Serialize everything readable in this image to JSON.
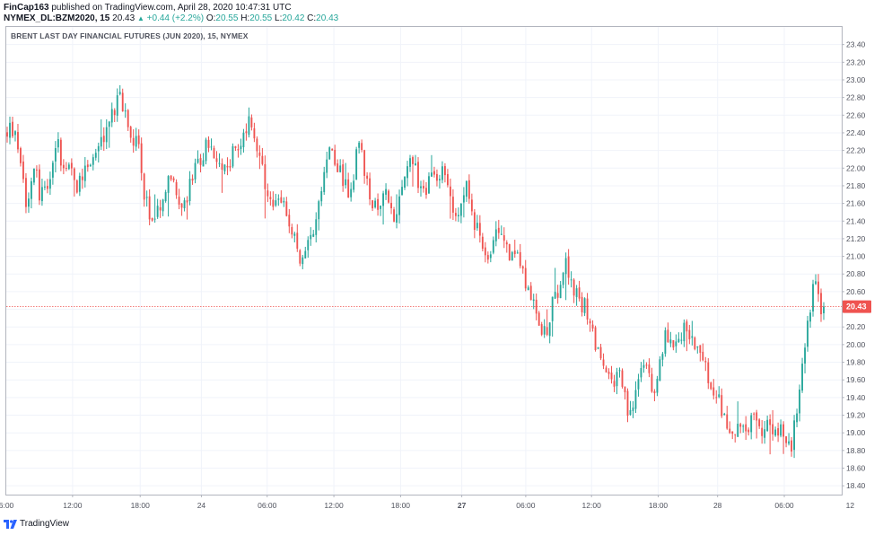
{
  "header": {
    "user": "FinCap163",
    "published_text": "published on TradingView.com, April 28, 2020 10:47:31 UTC"
  },
  "symbol_row": {
    "symbol": "NYMEX_DL:BZM2020, 15",
    "last": "20.43",
    "arrow_icon": "triangle-up-icon",
    "change": "+0.44 (+2.2%)",
    "o_label": "O:",
    "o_value": "20.55",
    "h_label": "H:",
    "h_value": "20.55",
    "l_label": "L:",
    "l_value": "20.42",
    "c_label": "C:",
    "c_value": "20.43"
  },
  "footer": {
    "brand": "TradingView",
    "logo_icon": "tradingview-logo-icon"
  },
  "colors": {
    "up": "#26a69a",
    "down": "#ef5350",
    "price_line": "#ef5350",
    "axis_text": "#50535e"
  },
  "chart_data": {
    "type": "candlestick",
    "title": "BRENT LAST DAY FINANCIAL FUTURES (JUN 2020), 15, NYMEX",
    "ylim": [
      18.3,
      23.6
    ],
    "y_ticks": [
      "18.40",
      "18.60",
      "18.80",
      "19.00",
      "19.20",
      "19.40",
      "19.60",
      "19.80",
      "20.00",
      "20.20",
      "20.40",
      "20.60",
      "20.80",
      "21.00",
      "21.20",
      "21.40",
      "21.60",
      "21.80",
      "22.00",
      "22.20",
      "22.40",
      "22.60",
      "22.80",
      "23.00",
      "23.20",
      "23.40"
    ],
    "x_ticks": [
      {
        "label": "6:00",
        "bold": false,
        "t": 0
      },
      {
        "label": "12:00",
        "bold": false,
        "t": 0.0796
      },
      {
        "label": "18:00",
        "bold": false,
        "t": 0.1608
      },
      {
        "label": "24",
        "bold": false,
        "t": 0.2343
      },
      {
        "label": "06:00",
        "bold": false,
        "t": 0.3133
      },
      {
        "label": "12:00",
        "bold": false,
        "t": 0.3934
      },
      {
        "label": "18:00",
        "bold": false,
        "t": 0.4735
      },
      {
        "label": "27",
        "bold": true,
        "t": 0.547
      },
      {
        "label": "06:00",
        "bold": false,
        "t": 0.6238
      },
      {
        "label": "12:00",
        "bold": false,
        "t": 0.7028
      },
      {
        "label": "18:00",
        "bold": false,
        "t": 0.7829
      },
      {
        "label": "28",
        "bold": false,
        "t": 0.8542
      },
      {
        "label": "06:00",
        "bold": false,
        "t": 0.9343
      },
      {
        "label": "12",
        "bold": false,
        "t": 1.0133
      }
    ],
    "last_price": "20.43",
    "last_price_value": 20.43,
    "path": [
      22.4,
      22.45,
      22.3,
      22.1,
      21.6,
      21.85,
      22.0,
      21.7,
      21.9,
      21.75,
      22.3,
      22.25,
      22.0,
      22.1,
      21.9,
      21.8,
      21.95,
      22.05,
      22.1,
      22.2,
      22.25,
      22.4,
      22.55,
      22.7,
      22.8,
      22.6,
      22.4,
      22.35,
      22.3,
      21.8,
      21.55,
      21.4,
      21.5,
      21.7,
      21.8,
      21.9,
      21.75,
      21.65,
      21.5,
      21.85,
      21.95,
      22.05,
      22.2,
      22.3,
      22.1,
      21.95,
      22.0,
      22.05,
      22.15,
      22.25,
      22.35,
      22.45,
      22.55,
      22.3,
      22.05,
      21.75,
      21.55,
      21.5,
      21.7,
      21.6,
      21.45,
      21.2,
      21.05,
      20.95,
      21.1,
      21.3,
      21.55,
      21.8,
      22.05,
      22.3,
      22.1,
      21.95,
      21.8,
      21.7,
      22.0,
      22.3,
      21.95,
      21.7,
      21.6,
      21.45,
      21.6,
      21.75,
      21.55,
      21.4,
      21.7,
      21.95,
      22.15,
      21.95,
      21.8,
      21.75,
      21.9,
      21.85,
      21.85,
      21.95,
      21.8,
      21.6,
      21.5,
      21.75,
      21.9,
      21.45,
      21.3,
      21.2,
      21.1,
      21.0,
      21.2,
      21.35,
      21.2,
      21.05,
      20.95,
      21.0,
      20.8,
      20.65,
      20.5,
      20.3,
      20.05,
      20.2,
      20.45,
      20.6,
      20.7,
      21.0,
      20.7,
      20.6,
      20.4,
      20.5,
      20.3,
      20.1,
      19.9,
      19.7,
      19.6,
      19.55,
      19.7,
      19.6,
      19.3,
      19.25,
      19.5,
      19.65,
      19.85,
      19.55,
      19.45,
      19.75,
      20.05,
      20.1,
      20.05,
      20.1,
      20.15,
      20.2,
      20.1,
      19.95,
      19.8,
      19.7,
      19.45,
      19.3,
      19.35,
      19.1,
      19.0,
      19.05,
      19.15,
      18.95,
      19.1,
      19.2,
      19.1,
      18.95,
      19.05,
      19.1,
      19.0,
      19.1,
      18.9,
      18.8,
      19.2,
      19.6,
      19.95,
      20.4,
      20.7,
      20.45,
      20.45
    ],
    "y_axis_side": "right",
    "grid": true
  }
}
